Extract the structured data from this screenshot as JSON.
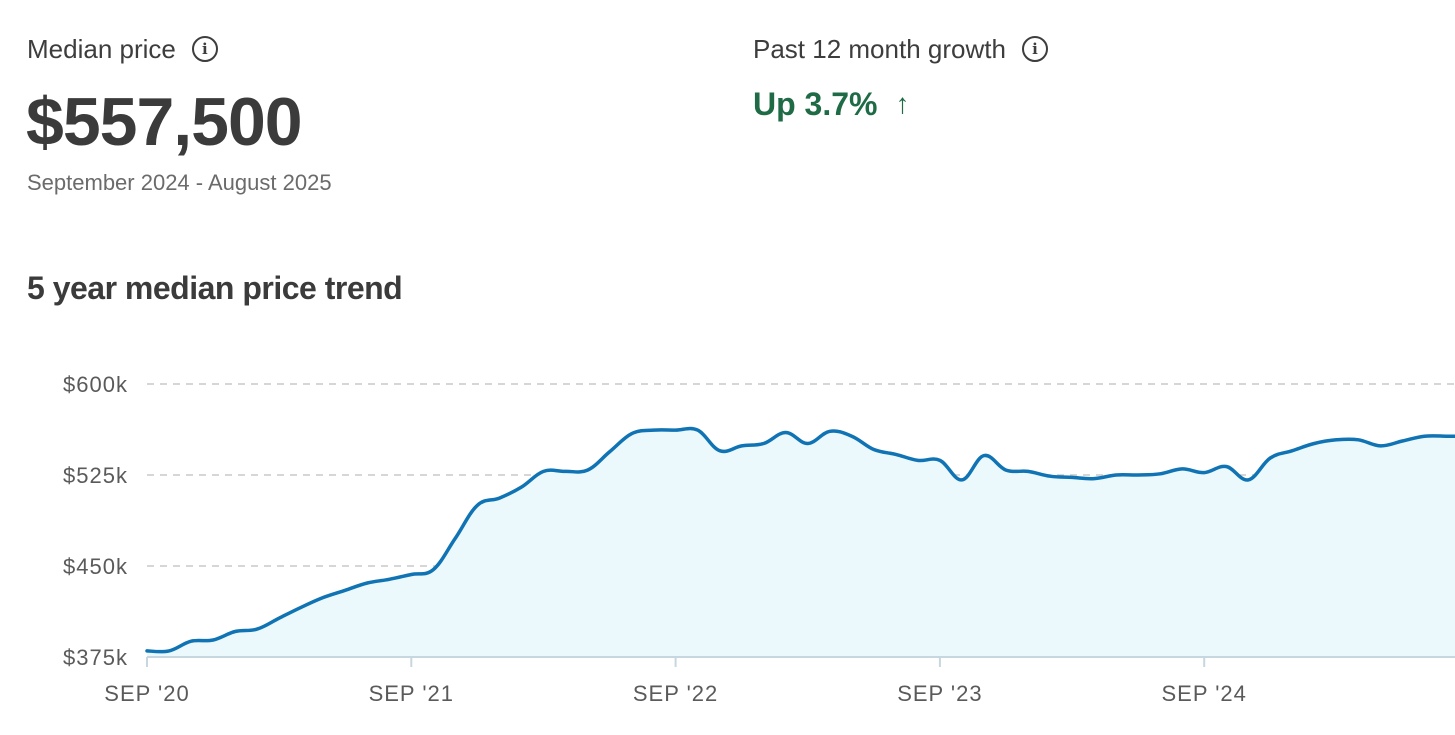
{
  "median": {
    "label": "Median price",
    "value": "$557,500",
    "date_range": "September 2024 - August 2025"
  },
  "growth": {
    "label": "Past 12 month growth",
    "value": "Up 3.7%",
    "arrow_icon": "arrow-up-icon",
    "color": "#1e6b45"
  },
  "trend": {
    "title": "5 year median price trend"
  },
  "colors": {
    "line": "#0f73b4",
    "fill": "#ebf8fc",
    "grid": "#c8c8c8",
    "axis": "#c7d7df"
  },
  "chart_data": {
    "type": "area",
    "title": "5 year median price trend",
    "xlabel": "",
    "ylabel": "",
    "ylim": [
      375,
      600
    ],
    "yticks": [
      375,
      450,
      525,
      600
    ],
    "ytick_labels": [
      "$375k",
      "$450k",
      "$525k",
      "$600k"
    ],
    "xtick_labels": [
      "SEP '20",
      "SEP '21",
      "SEP '22",
      "SEP '23",
      "SEP '24"
    ],
    "x_start": "2020-09",
    "x_end": "2025-08",
    "grid": true,
    "series": [
      {
        "values": [
          380,
          380,
          388,
          389,
          396,
          398,
          407,
          416,
          424,
          430,
          436,
          439,
          443,
          447,
          473,
          500,
          506,
          515,
          528,
          528,
          529,
          544,
          559,
          562,
          562,
          562,
          545,
          549,
          551,
          560,
          551,
          561,
          557,
          546,
          542,
          537,
          537,
          521,
          541,
          529,
          528,
          524,
          523,
          522,
          525,
          525,
          526,
          530,
          527,
          532,
          521,
          539,
          545,
          551,
          554,
          554,
          549,
          553,
          557,
          557
        ]
      }
    ]
  }
}
